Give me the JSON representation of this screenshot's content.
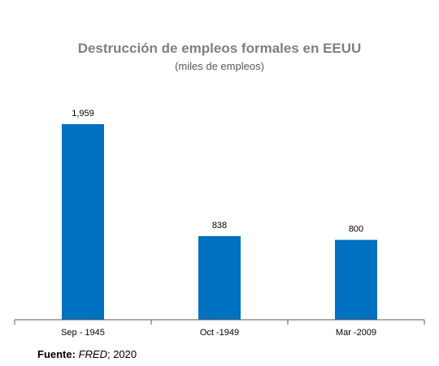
{
  "colors": {
    "bar": "#0070c0",
    "axis": "#595959",
    "label": "#000000"
  },
  "chart_data": {
    "type": "bar",
    "title": "Destrucción de empleos formales en EEUU",
    "subtitle": "(miles de empleos)",
    "categories": [
      "Sep - 1945",
      "Oct -1949",
      "Mar -2009"
    ],
    "values": [
      1959,
      838,
      800
    ],
    "value_labels": [
      "1,959",
      "838",
      "800"
    ],
    "xlabel": "",
    "ylabel": "",
    "ylim": [
      0,
      2000
    ],
    "grid": false,
    "legend": "none"
  },
  "source": {
    "label": "Fuente:",
    "name": "FRED",
    "year": "; 2020"
  }
}
